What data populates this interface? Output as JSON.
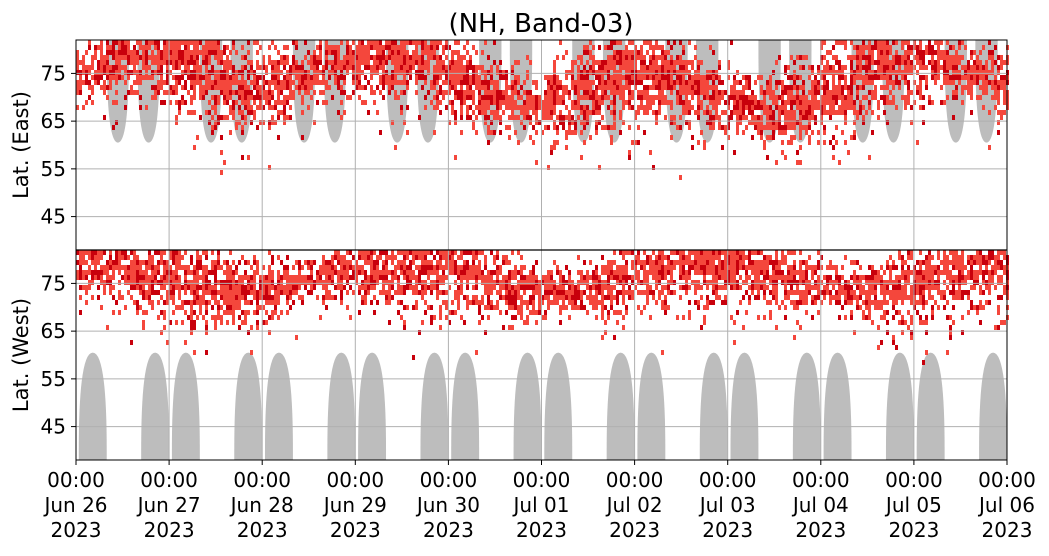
{
  "chart_data": {
    "type": "heatmap",
    "title": "(NH, Band-03)",
    "grid": true,
    "xaxis": {
      "range": [
        "2023-06-26 00:00",
        "2023-07-06 00:00"
      ],
      "ticks": [
        {
          "time": "00:00",
          "date": "Jun 26",
          "year": "2023"
        },
        {
          "time": "00:00",
          "date": "Jun 27",
          "year": "2023"
        },
        {
          "time": "00:00",
          "date": "Jun 28",
          "year": "2023"
        },
        {
          "time": "00:00",
          "date": "Jun 29",
          "year": "2023"
        },
        {
          "time": "00:00",
          "date": "Jun 30",
          "year": "2023"
        },
        {
          "time": "00:00",
          "date": "Jul 01",
          "year": "2023"
        },
        {
          "time": "00:00",
          "date": "Jul 02",
          "year": "2023"
        },
        {
          "time": "00:00",
          "date": "Jul 03",
          "year": "2023"
        },
        {
          "time": "00:00",
          "date": "Jul 04",
          "year": "2023"
        },
        {
          "time": "00:00",
          "date": "Jul 05",
          "year": "2023"
        },
        {
          "time": "00:00",
          "date": "Jul 06",
          "year": "2023"
        }
      ]
    },
    "panels": [
      {
        "name": "east",
        "ylabel": "Lat. (East)",
        "yrange": [
          38,
          82
        ],
        "yticks": [
          45,
          55,
          65,
          75
        ],
        "inverted": false
      },
      {
        "name": "west",
        "ylabel": "Lat. (West)",
        "yrange": [
          82,
          38
        ],
        "yticks": [
          75,
          65,
          55,
          45
        ],
        "inverted": true
      }
    ],
    "colors": {
      "intensity_low": "#f4473c",
      "intensity_high": "#c8000c",
      "daylight_mask": "#bdbdbd",
      "grid": "#b0b0b0",
      "divider": "#000000"
    }
  }
}
